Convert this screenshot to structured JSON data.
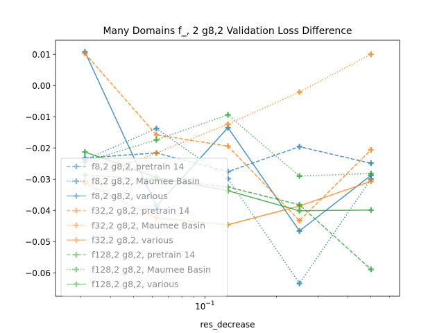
{
  "chart_data": {
    "type": "line",
    "title": "Many Domains f_, 2 g8,2 Validation Loss Difference",
    "xlabel": "res_decrease",
    "ylabel": "",
    "xscale": "log",
    "x": [
      0.03125,
      0.0625,
      0.125,
      0.25,
      0.5
    ],
    "xlim": [
      0.0235,
      0.66
    ],
    "ylim": [
      -0.0675,
      0.0145
    ],
    "x_ticks": [
      {
        "value": 0.1,
        "label": "10^-1"
      }
    ],
    "y_ticks": [
      {
        "value": 0.01,
        "label": "0.01"
      },
      {
        "value": 0.0,
        "label": "0.00"
      },
      {
        "value": -0.01,
        "label": "−0.01"
      },
      {
        "value": -0.02,
        "label": "−0.02"
      },
      {
        "value": -0.03,
        "label": "−0.03"
      },
      {
        "value": -0.04,
        "label": "−0.04"
      },
      {
        "value": -0.05,
        "label": "−0.05"
      },
      {
        "value": -0.06,
        "label": "−0.06"
      }
    ],
    "grid": false,
    "legend_position": "lower-left",
    "series": [
      {
        "name": "f8,2 g8,2, pretrain 14",
        "color": "#1f77b4",
        "dash": "dashed",
        "values": [
          -0.0232,
          -0.0216,
          -0.0276,
          -0.0196,
          -0.0249
        ]
      },
      {
        "name": "f8,2 g8,2, Maumee Basin",
        "color": "#1f77b4",
        "dash": "dotted",
        "values": [
          -0.0238,
          -0.0138,
          -0.0298,
          -0.0634,
          -0.03
        ]
      },
      {
        "name": "f8,2 g8,2, various",
        "color": "#1f77b4",
        "dash": "solid",
        "values": [
          0.0108,
          -0.0387,
          -0.0135,
          -0.0466,
          -0.0288
        ]
      },
      {
        "name": "f32,2 g8,2, pretrain 14",
        "color": "#ff7f0e",
        "dash": "dashed",
        "values": [
          0.0103,
          -0.0158,
          -0.0194,
          -0.0433,
          -0.0206
        ]
      },
      {
        "name": "f32,2 g8,2, Maumee Basin",
        "color": "#ff7f0e",
        "dash": "dotted",
        "values": [
          -0.0306,
          -0.0216,
          -0.0124,
          -0.0021,
          0.01
        ]
      },
      {
        "name": "f32,2 g8,2, various",
        "color": "#ff7f0e",
        "dash": "solid",
        "values": [
          -0.0313,
          -0.0424,
          -0.0446,
          -0.0386,
          -0.0307
        ]
      },
      {
        "name": "f128,2 g8,2, pretrain 14",
        "color": "#2ca02c",
        "dash": "dashed",
        "values": [
          -0.0287,
          -0.03,
          -0.0325,
          -0.0382,
          -0.0589
        ]
      },
      {
        "name": "f128,2 g8,2, Maumee Basin",
        "color": "#2ca02c",
        "dash": "dotted",
        "values": [
          -0.0244,
          -0.0174,
          -0.0094,
          -0.029,
          -0.0282
        ]
      },
      {
        "name": "f128,2 g8,2, various",
        "color": "#2ca02c",
        "dash": "solid",
        "values": [
          -0.0213,
          -0.0294,
          -0.0337,
          -0.0401,
          -0.0399
        ]
      }
    ]
  }
}
